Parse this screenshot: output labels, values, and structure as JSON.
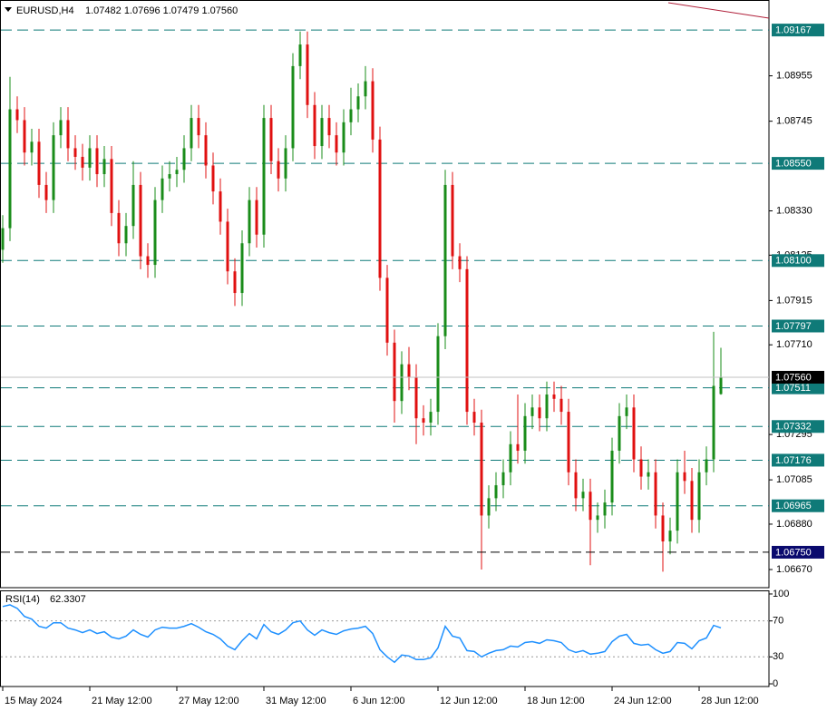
{
  "chart_data": {
    "type": "candlestick",
    "symbol": "EURUSD,H4",
    "quote": "1.07482 1.07696 1.07479 1.07560",
    "up_color": "#1a8c1a",
    "down_color": "#e01010",
    "level_color": "#0f7a78",
    "ylim": [
      1.06586,
      1.09306
    ],
    "yticks": [
      1.08955,
      1.08745,
      {
        "value": 1.0833,
        "label": "1.08330"
      },
      1.08125,
      1.07915,
      {
        "value": 1.0771,
        "label": "1.07710"
      },
      1.07295,
      1.07085,
      {
        "value": 1.0688,
        "label": "1.06880"
      },
      {
        "value": 1.0667,
        "label": "1.06670"
      }
    ],
    "levels": [
      1.09167,
      {
        "value": 1.0855,
        "label": "1.08550"
      },
      {
        "value": 1.081,
        "label": "1.08100"
      },
      1.07797,
      1.07511,
      1.07332,
      1.07176,
      1.06965
    ],
    "support": {
      "value": 1.0675,
      "label": "1.06750"
    },
    "current_price": {
      "value": 1.0756,
      "label": "1.07560"
    },
    "categories": [
      "15 May 2024",
      null,
      null,
      null,
      null,
      null,
      null,
      null,
      null,
      null,
      null,
      null,
      "21 May 12:00",
      null,
      null,
      null,
      null,
      null,
      null,
      null,
      null,
      null,
      null,
      null,
      "27 May 12:00",
      null,
      null,
      null,
      null,
      null,
      null,
      null,
      null,
      null,
      null,
      null,
      "31 May 12:00",
      null,
      null,
      null,
      null,
      null,
      null,
      null,
      null,
      null,
      null,
      null,
      "6 Jun 12:00",
      null,
      null,
      null,
      null,
      null,
      null,
      null,
      null,
      null,
      null,
      null,
      "12 Jun 12:00",
      null,
      null,
      null,
      null,
      null,
      null,
      null,
      null,
      null,
      null,
      null,
      "18 Jun 12:00",
      null,
      null,
      null,
      null,
      null,
      null,
      null,
      null,
      null,
      null,
      null,
      "24 Jun 12:00",
      null,
      null,
      null,
      null,
      null,
      null,
      null,
      null,
      null,
      null,
      null,
      "28 Jun 12:00",
      null,
      null,
      null
    ],
    "ohlc": [
      [
        1.0815,
        1.0831,
        1.0809,
        1.0825
      ],
      [
        1.0825,
        1.0895,
        1.0819,
        1.088
      ],
      [
        1.088,
        1.0886,
        1.0869,
        1.0875
      ],
      [
        1.0875,
        1.0881,
        1.0854,
        1.086
      ],
      [
        1.086,
        1.0871,
        1.0854,
        1.0865
      ],
      [
        1.0865,
        1.0871,
        1.0839,
        1.0845
      ],
      [
        1.0845,
        1.0851,
        1.0832,
        1.0838
      ],
      [
        1.0838,
        1.0874,
        1.0832,
        1.0868
      ],
      [
        1.0868,
        1.0881,
        1.0862,
        1.0875
      ],
      [
        1.0875,
        1.0881,
        1.0856,
        1.0862
      ],
      [
        1.0862,
        1.0868,
        1.0852,
        1.0858
      ],
      [
        1.0858,
        1.0864,
        1.0847,
        1.0853
      ],
      [
        1.0853,
        1.0868,
        1.0847,
        1.0862
      ],
      [
        1.0862,
        1.0868,
        1.0844,
        1.085
      ],
      [
        1.085,
        1.0863,
        1.0844,
        1.0857
      ],
      [
        1.0857,
        1.0863,
        1.0826,
        1.0832
      ],
      [
        1.0832,
        1.0838,
        1.0812,
        1.0818
      ],
      [
        1.0818,
        1.0832,
        1.0812,
        1.0826
      ],
      [
        1.0826,
        1.0856,
        1.082,
        1.0845
      ],
      [
        1.0845,
        1.0851,
        1.0806,
        1.0812
      ],
      [
        1.0812,
        1.0818,
        1.0802,
        1.0808
      ],
      [
        1.0808,
        1.0844,
        1.0802,
        1.0838
      ],
      [
        1.0838,
        1.0854,
        1.0832,
        1.0848
      ],
      [
        1.0848,
        1.0856,
        1.0842,
        1.085
      ],
      [
        1.085,
        1.0858,
        1.0844,
        1.0852
      ],
      [
        1.0852,
        1.0868,
        1.0846,
        1.0862
      ],
      [
        1.0862,
        1.0882,
        1.0856,
        1.0876
      ],
      [
        1.0876,
        1.0882,
        1.0862,
        1.0868
      ],
      [
        1.0868,
        1.0874,
        1.0848,
        1.0854
      ],
      [
        1.0854,
        1.086,
        1.0836,
        1.0842
      ],
      [
        1.0842,
        1.0848,
        1.0822,
        1.0828
      ],
      [
        1.0828,
        1.0834,
        1.0799,
        1.0805
      ],
      [
        1.0805,
        1.0811,
        1.0789,
        1.0795
      ],
      [
        1.0795,
        1.0824,
        1.0789,
        1.0818
      ],
      [
        1.0818,
        1.0844,
        1.0812,
        1.0838
      ],
      [
        1.0838,
        1.0844,
        1.0816,
        1.0822
      ],
      [
        1.0822,
        1.0882,
        1.0816,
        1.0876
      ],
      [
        1.0876,
        1.0882,
        1.085,
        1.0856
      ],
      [
        1.0856,
        1.0862,
        1.0842,
        1.0848
      ],
      [
        1.0848,
        1.0868,
        1.0842,
        1.0862
      ],
      [
        1.0862,
        1.0906,
        1.0856,
        1.09
      ],
      [
        1.09,
        1.0916,
        1.0894,
        1.091
      ],
      [
        1.091,
        1.0916,
        1.0876,
        1.0882
      ],
      [
        1.0882,
        1.0888,
        1.0857,
        1.0863
      ],
      [
        1.0863,
        1.0882,
        1.0857,
        1.0876
      ],
      [
        1.0876,
        1.0882,
        1.0862,
        1.0868
      ],
      [
        1.0868,
        1.0874,
        1.0854,
        1.086
      ],
      [
        1.086,
        1.088,
        1.0854,
        1.0874
      ],
      [
        1.0874,
        1.089,
        1.0868,
        1.088
      ],
      [
        1.088,
        1.0892,
        1.0874,
        1.0886
      ],
      [
        1.0886,
        1.09,
        1.088,
        1.0893
      ],
      [
        1.0893,
        1.0899,
        1.086,
        1.0866
      ],
      [
        1.0866,
        1.0872,
        1.0796,
        1.0802
      ],
      [
        1.0802,
        1.0808,
        1.0766,
        1.0772
      ],
      [
        1.0772,
        1.0778,
        1.0735,
        1.0745
      ],
      [
        1.0745,
        1.0768,
        1.0739,
        1.0762
      ],
      [
        1.0762,
        1.077,
        1.075,
        1.0756
      ],
      [
        1.0756,
        1.0762,
        1.0725,
        1.0737
      ],
      [
        1.0737,
        1.0743,
        1.0729,
        1.0735
      ],
      [
        1.0735,
        1.0746,
        1.0729,
        1.074
      ],
      [
        1.074,
        1.0781,
        1.0734,
        1.0775
      ],
      [
        1.0775,
        1.0852,
        1.0769,
        1.0845
      ],
      [
        1.0845,
        1.0851,
        1.0806,
        1.0812
      ],
      [
        1.0812,
        1.0818,
        1.08,
        1.0806
      ],
      [
        1.0806,
        1.0812,
        1.0734,
        1.074
      ],
      [
        1.074,
        1.0746,
        1.0729,
        1.0735
      ],
      [
        1.0735,
        1.0741,
        1.0667,
        1.0692
      ],
      [
        1.0692,
        1.0706,
        1.0686,
        1.07
      ],
      [
        1.07,
        1.0712,
        1.0694,
        1.0706
      ],
      [
        1.0706,
        1.0718,
        1.07,
        1.0712
      ],
      [
        1.0712,
        1.0731,
        1.0706,
        1.0725
      ],
      [
        1.0725,
        1.0748,
        1.0716,
        1.0722
      ],
      [
        1.0722,
        1.0744,
        1.0716,
        1.0738
      ],
      [
        1.0738,
        1.0748,
        1.0732,
        1.0742
      ],
      [
        1.0742,
        1.0748,
        1.0731,
        1.0737
      ],
      [
        1.0737,
        1.0754,
        1.0731,
        1.0748
      ],
      [
        1.0748,
        1.0754,
        1.074,
        1.0746
      ],
      [
        1.0746,
        1.0752,
        1.0734,
        1.074
      ],
      [
        1.074,
        1.0746,
        1.0706,
        1.0712
      ],
      [
        1.0712,
        1.0718,
        1.0694,
        1.07
      ],
      [
        1.07,
        1.0709,
        1.0694,
        1.0703
      ],
      [
        1.0703,
        1.0709,
        1.0669,
        1.069
      ],
      [
        1.069,
        1.0698,
        1.0684,
        1.0692
      ],
      [
        1.0692,
        1.0704,
        1.0686,
        1.0698
      ],
      [
        1.0698,
        1.0728,
        1.0692,
        1.0722
      ],
      [
        1.0722,
        1.0744,
        1.0716,
        1.0738
      ],
      [
        1.0738,
        1.0748,
        1.0732,
        1.0742
      ],
      [
        1.0742,
        1.0748,
        1.0712,
        1.0718
      ],
      [
        1.0718,
        1.0724,
        1.0704,
        1.071
      ],
      [
        1.071,
        1.0718,
        1.0704,
        1.0712
      ],
      [
        1.0712,
        1.0718,
        1.0686,
        1.0692
      ],
      [
        1.0692,
        1.0698,
        1.0666,
        1.068
      ],
      [
        1.068,
        1.0691,
        1.0674,
        1.0685
      ],
      [
        1.0685,
        1.0718,
        1.0679,
        1.0712
      ],
      [
        1.0712,
        1.0722,
        1.0702,
        1.0708
      ],
      [
        1.0708,
        1.0714,
        1.0684,
        1.069
      ],
      [
        1.069,
        1.0718,
        1.0684,
        1.0712
      ],
      [
        1.0712,
        1.0724,
        1.0706,
        1.0718
      ],
      [
        1.0718,
        1.0777,
        1.0712,
        1.0752
      ],
      [
        1.07482,
        1.07696,
        1.07479,
        1.0756
      ]
    ],
    "rsi": {
      "name": "RSI(14)",
      "color": "#1e90ff",
      "ylim": [
        -3,
        104
      ],
      "yticks": [
        100,
        70,
        30,
        0
      ],
      "levels": [
        70,
        30
      ],
      "values": [
        86,
        88,
        84,
        75,
        72,
        64,
        62,
        68,
        68,
        62,
        60,
        57,
        60,
        56,
        58,
        52,
        50,
        53,
        60,
        55,
        52,
        60,
        63,
        62,
        62,
        64,
        67,
        63,
        58,
        55,
        50,
        42,
        38,
        48,
        56,
        50,
        66,
        58,
        55,
        60,
        68,
        70,
        60,
        54,
        60,
        57,
        55,
        59,
        61,
        62,
        64,
        56,
        38,
        30,
        24,
        32,
        31,
        27,
        27,
        29,
        40,
        64,
        53,
        51,
        37,
        36,
        30,
        34,
        37,
        38,
        42,
        41,
        46,
        47,
        45,
        49,
        48,
        46,
        38,
        35,
        37,
        33,
        34,
        36,
        47,
        53,
        55,
        45,
        43,
        44,
        38,
        34,
        36,
        46,
        45,
        39,
        48,
        51,
        65,
        62.3307
      ]
    }
  }
}
